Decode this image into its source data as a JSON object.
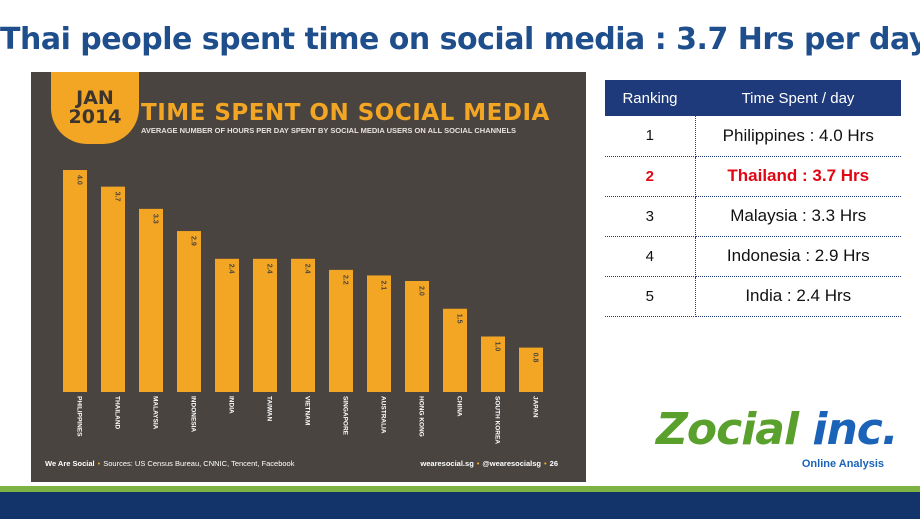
{
  "title": "Thai people spent time on social media : 3.7 Hrs per day",
  "chart_data": {
    "type": "bar",
    "badge_line1": "JAN",
    "badge_line2": "2014",
    "title": "TIME SPENT ON SOCIAL MEDIA",
    "subtitle": "AVERAGE NUMBER OF HOURS PER DAY SPENT BY SOCIAL MEDIA USERS ON ALL SOCIAL CHANNELS",
    "categories": [
      "PHILIPPINES",
      "THAILAND",
      "MALAYSIA",
      "INDONESIA",
      "INDIA",
      "TAIWAN",
      "VIETNAM",
      "SINGAPORE",
      "AUSTRALIA",
      "HONG KONG",
      "CHINA",
      "SOUTH KOREA",
      "JAPAN"
    ],
    "values": [
      4.0,
      3.7,
      3.3,
      2.9,
      2.4,
      2.4,
      2.4,
      2.2,
      2.1,
      2.0,
      1.5,
      1.0,
      0.8
    ],
    "value_labels": [
      "4.0",
      "3.7",
      "3.3",
      "2.9",
      "2.4",
      "2.4",
      "2.4",
      "2.2",
      "2.1",
      "2.0",
      "1.5",
      "1.0",
      "0.8"
    ],
    "ylim": [
      0,
      4.0
    ],
    "bar_color": "#f2a623",
    "background_color": "#4a4440",
    "grid": false,
    "legend": "none",
    "footer_brand": "We Are Social",
    "footer_sources": "Sources: US Census Bureau, CNNIC, Tencent, Facebook",
    "footer_site": "wearesocial.sg",
    "footer_handle": "@wearesocialsg",
    "footer_page": "26"
  },
  "table": {
    "headers": [
      "Ranking",
      "Time Spent / day"
    ],
    "rows": [
      {
        "rank": "1",
        "value": "Philippines : 4.0 Hrs"
      },
      {
        "rank": "2",
        "value": "Thailand : 3.7 Hrs",
        "highlight": true
      },
      {
        "rank": "3",
        "value": "Malaysia : 3.3 Hrs"
      },
      {
        "rank": "4",
        "value": "Indonesia : 2.9 Hrs"
      },
      {
        "rank": "5",
        "value": "India : 2.4 Hrs"
      }
    ],
    "header_color": "#1f3a7a",
    "highlight_color": "#e30613"
  },
  "logo": {
    "part1": "Zocial",
    "part2": " inc.",
    "tagline": "Online Analysis",
    "color_green": "#5aa02c",
    "color_blue": "#1b63b8"
  }
}
